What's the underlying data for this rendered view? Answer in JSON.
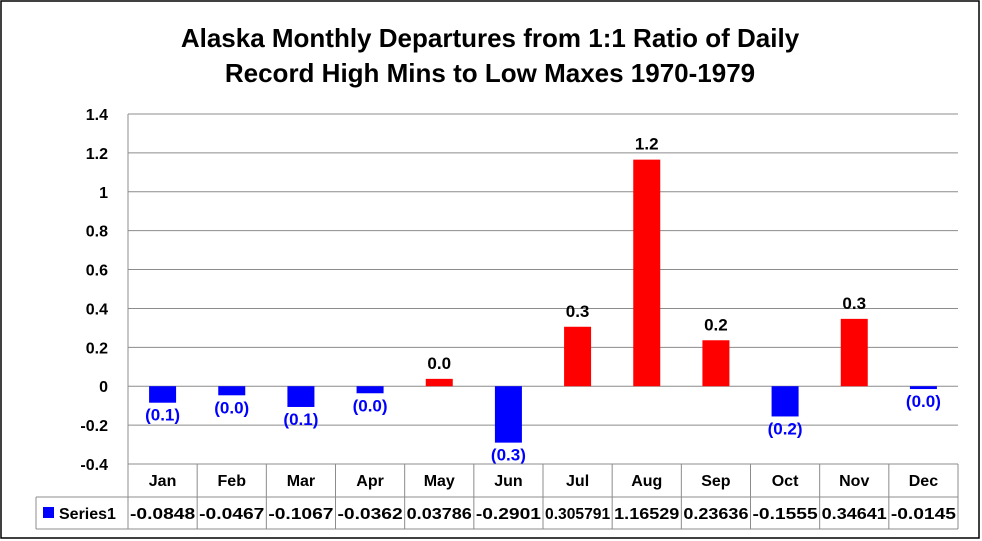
{
  "chart_data": {
    "type": "bar",
    "title_lines": [
      "Alaska Monthly Departures from 1:1 Ratio of Daily",
      "Record High Mins to Low Maxes 1970-1979"
    ],
    "categories": [
      "Jan",
      "Feb",
      "Mar",
      "Apr",
      "May",
      "Jun",
      "Jul",
      "Aug",
      "Sep",
      "Oct",
      "Nov",
      "Dec"
    ],
    "series": [
      {
        "name": "Series1",
        "values": [
          -0.0848,
          -0.0467,
          -0.1067,
          -0.0362,
          0.03786,
          -0.2901,
          0.305791,
          1.16529,
          0.23636,
          -0.1555,
          0.34641,
          -0.0145
        ],
        "table_values": [
          "-0.0848",
          "-0.0467",
          "-0.1067",
          "-0.0362",
          "0.03786",
          "-0.2901",
          "0.305791",
          "1.16529",
          "0.23636",
          "-0.1555",
          "0.34641",
          "-0.0145"
        ],
        "data_labels": [
          "(0.1)",
          "(0.0)",
          "(0.1)",
          "(0.0)",
          "0.0",
          "(0.3)",
          "0.3",
          "1.2",
          "0.2",
          "(0.2)",
          "0.3",
          "(0.0)"
        ],
        "color": "#0000ff"
      }
    ],
    "positive_color": "#ff0000",
    "negative_color": "#0000ff",
    "positive_label_color": "#000000",
    "negative_label_color": "#0000ff",
    "ylim": [
      -0.4,
      1.4
    ],
    "yticks": [
      -0.4,
      -0.2,
      0,
      0.2,
      0.4,
      0.6,
      0.8,
      1,
      1.2,
      1.4
    ],
    "ytick_labels": [
      "-0.4",
      "-0.2",
      "0",
      "0.2",
      "0.4",
      "0.6",
      "0.8",
      "1",
      "1.2",
      "1.4"
    ],
    "grid": true,
    "data_table": true,
    "legend_key_color": "#0000ff"
  }
}
